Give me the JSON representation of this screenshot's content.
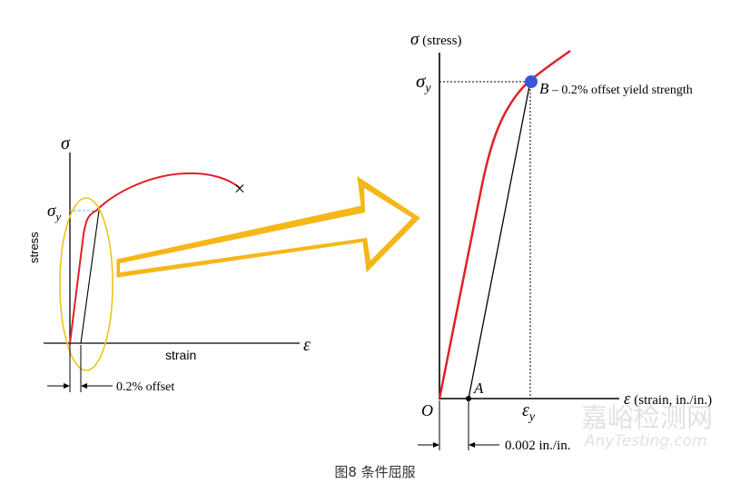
{
  "left_diagram": {
    "sigma_label": "σ",
    "sigma_y_label": "σ",
    "sigma_y_sub": "y",
    "stress_label": "stress",
    "strain_label": "strain",
    "epsilon_label": "ε",
    "offset_label": "0.2% offset",
    "fracture_mark": "×"
  },
  "right_diagram": {
    "y_axis_sym": "σ",
    "y_axis_text": " (stress)",
    "sigma_y_label": "σ",
    "sigma_y_sub": "y",
    "point_b": "B",
    "point_b_text": " – 0.2% offset yield strength",
    "point_a": "A",
    "origin": "O",
    "x_axis_sym": "ε",
    "x_axis_text": " (strain, in./in.)",
    "epsilon_y_label": "ε",
    "epsilon_y_sub": "y",
    "offset_label": "0.002 in./in."
  },
  "watermark": {
    "line1": "嘉峪检测网",
    "line2": "AnyTesting.com"
  },
  "caption": "图8 条件屈服",
  "colors": {
    "curve": "#e0202a",
    "arrow": "#f5b718",
    "ellipse": "#f0c419",
    "point_b": "#3b55d9",
    "axis": "#000000"
  }
}
